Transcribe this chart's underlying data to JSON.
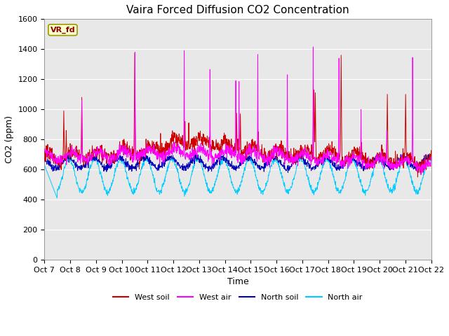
{
  "title": "Vaira Forced Diffusion CO2 Concentration",
  "xlabel": "Time",
  "ylabel": "CO2 (ppm)",
  "ylim": [
    0,
    1600
  ],
  "yticks": [
    0,
    200,
    400,
    600,
    800,
    1000,
    1200,
    1400,
    1600
  ],
  "xtick_labels": [
    "Oct 7",
    "Oct 8",
    "Oct 9",
    "Oct 10",
    "Oct 11",
    "Oct 12",
    "Oct 13",
    "Oct 14",
    "Oct 15",
    "Oct 16",
    "Oct 17",
    "Oct 18",
    "Oct 19",
    "Oct 20",
    "Oct 21",
    "Oct 22"
  ],
  "label_box_text": "VR_fd",
  "label_box_color": "#ffffcc",
  "label_box_edge": "#999900",
  "line_colors": {
    "west_soil": "#cc0000",
    "west_air": "#ff00ff",
    "north_soil": "#0000bb",
    "north_air": "#00ccff"
  },
  "legend_labels": [
    "West soil",
    "West air",
    "North soil",
    "North air"
  ],
  "background_color": "#e8e8e8",
  "grid_color": "white",
  "title_fontsize": 11,
  "axis_label_fontsize": 9,
  "tick_fontsize": 8
}
